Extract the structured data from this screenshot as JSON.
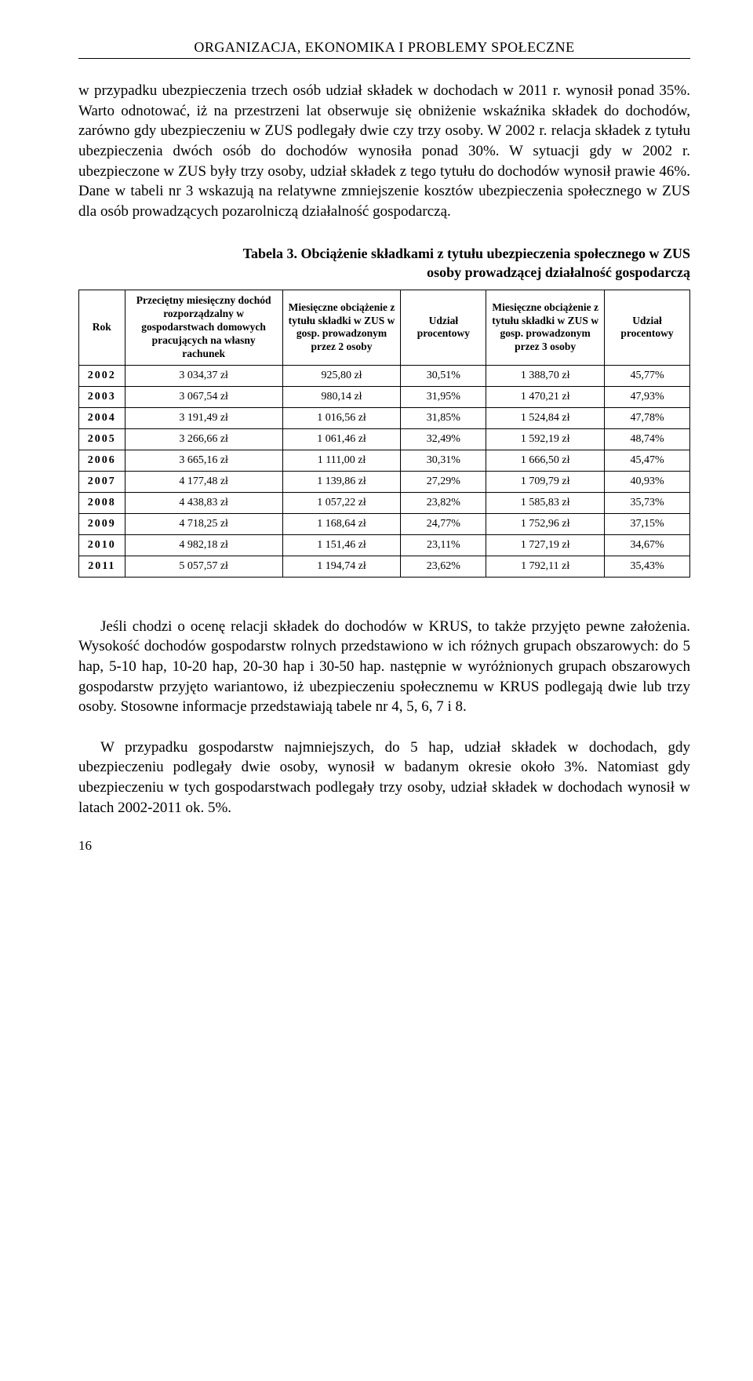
{
  "header": "ORGANIZACJA, EKONOMIKA I PROBLEMY SPOŁECZNE",
  "para1": "w przypadku ubezpieczenia trzech osób udział składek w dochodach w 2011 r. wynosił ponad 35%. Warto odnotować, iż na przestrzeni lat obserwuje się obniżenie wskaźnika składek do dochodów, zarówno gdy ubezpieczeniu w ZUS podlegały dwie czy trzy osoby. W 2002 r. relacja składek z tytułu ubezpieczenia dwóch osób do dochodów wynosiła ponad 30%. W sytuacji gdy w 2002 r. ubezpieczone w ZUS były trzy osoby, udział składek z tego tytułu do dochodów wynosił prawie 46%. Dane w tabeli nr 3 wskazują na relatywne zmniejszenie kosztów ubezpieczenia społecznego w ZUS dla osób prowadzących pozarolniczą działalność gospodarczą.",
  "tableTitle1": "Tabela 3. Obciążenie składkami z tytułu ubezpieczenia społecznego w ZUS",
  "tableTitle2": "osoby prowadzącej działalność gospodarczą",
  "columns": {
    "c0": "Rok",
    "c1": "Przeciętny miesięczny dochód rozporządzalny w gospodarstwach domowych pracujących na własny rachunek",
    "c2": "Miesięczne obciążenie z tytułu składki w ZUS w gosp. prowadzonym przez 2 osoby",
    "c3": "Udział procentowy",
    "c4": "Miesięczne obciążenie z tytułu składki w ZUS w gosp. prowadzonym przez 3 osoby",
    "c5": "Udział procentowy"
  },
  "rows": [
    {
      "y": "2002",
      "c1": "3 034,37 zł",
      "c2": "925,80 zł",
      "c3": "30,51%",
      "c4": "1 388,70 zł",
      "c5": "45,77%"
    },
    {
      "y": "2003",
      "c1": "3 067,54 zł",
      "c2": "980,14 zł",
      "c3": "31,95%",
      "c4": "1 470,21 zł",
      "c5": "47,93%"
    },
    {
      "y": "2004",
      "c1": "3 191,49 zł",
      "c2": "1 016,56 zł",
      "c3": "31,85%",
      "c4": "1 524,84 zł",
      "c5": "47,78%"
    },
    {
      "y": "2005",
      "c1": "3 266,66 zł",
      "c2": "1 061,46 zł",
      "c3": "32,49%",
      "c4": "1 592,19 zł",
      "c5": "48,74%"
    },
    {
      "y": "2006",
      "c1": "3 665,16 zł",
      "c2": "1 111,00 zł",
      "c3": "30,31%",
      "c4": "1 666,50 zł",
      "c5": "45,47%"
    },
    {
      "y": "2007",
      "c1": "4 177,48 zł",
      "c2": "1 139,86 zł",
      "c3": "27,29%",
      "c4": "1 709,79 zł",
      "c5": "40,93%"
    },
    {
      "y": "2008",
      "c1": "4 438,83 zł",
      "c2": "1 057,22 zł",
      "c3": "23,82%",
      "c4": "1 585,83 zł",
      "c5": "35,73%"
    },
    {
      "y": "2009",
      "c1": "4 718,25 zł",
      "c2": "1 168,64 zł",
      "c3": "24,77%",
      "c4": "1 752,96 zł",
      "c5": "37,15%"
    },
    {
      "y": "2010",
      "c1": "4 982,18 zł",
      "c2": "1 151,46 zł",
      "c3": "23,11%",
      "c4": "1 727,19 zł",
      "c5": "34,67%"
    },
    {
      "y": "2011",
      "c1": "5 057,57 zł",
      "c2": "1 194,74 zł",
      "c3": "23,62%",
      "c4": "1 792,11 zł",
      "c5": "35,43%"
    }
  ],
  "para2": "Jeśli chodzi o ocenę relacji składek do dochodów w KRUS, to także przyjęto pewne założenia. Wysokość dochodów gospodarstw rolnych przedstawiono w ich różnych grupach obszarowych: do 5 hap, 5-10 hap, 10-20 hap, 20-30 hap i 30-50 hap. następnie w wyróżnionych grupach obszarowych gospodarstw przyjęto wariantowo, iż ubezpieczeniu społecznemu w KRUS podlegają dwie lub trzy osoby. Stosowne informacje przedstawiają tabele nr 4, 5, 6, 7 i 8.",
  "para3": "W przypadku gospodarstw najmniejszych, do 5 hap, udział składek w dochodach, gdy ubezpieczeniu podlegały dwie osoby, wynosił w badanym okresie około 3%. Natomiast gdy ubezpieczeniu w tych gospodarstwach podlegały trzy osoby, udział składek w dochodach wynosił w latach 2002-2011 ok. 5%.",
  "pageNum": "16"
}
